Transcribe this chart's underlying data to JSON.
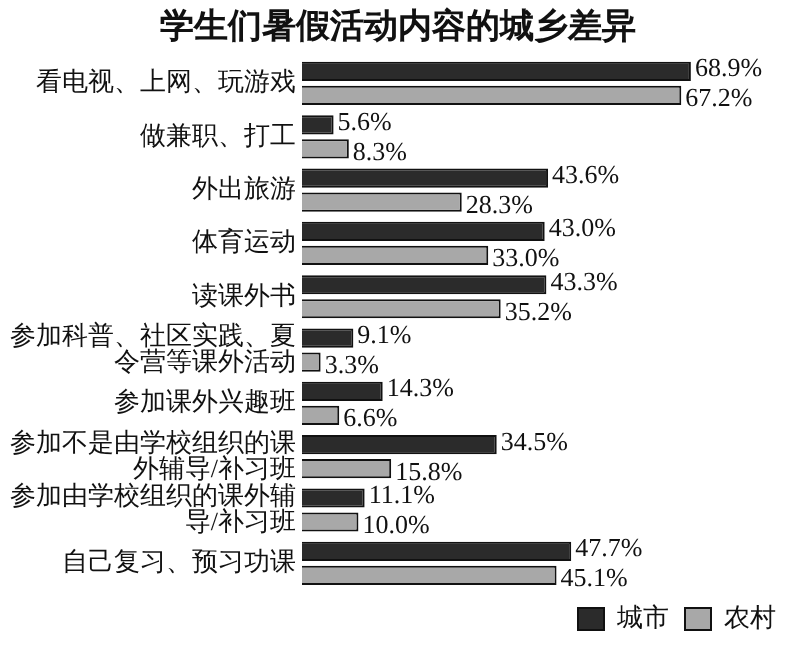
{
  "chart_data": {
    "type": "bar",
    "orientation": "horizontal",
    "title": "学生们暑假活动内容的城乡差异",
    "categories": [
      "看电视、上网、玩游戏",
      "做兼职、打工",
      "外出旅游",
      "体育运动",
      "读课外书",
      "参加科普、社区实践、夏令营等课外活动",
      "参加课外兴趣班",
      "参加不是由学校组织的课外辅导/补习班",
      "参加由学校组织的课外辅导/补习班",
      "自己复习、预习功课"
    ],
    "series": [
      {
        "name": "城市",
        "color": "#2b2b2b",
        "values": [
          68.9,
          5.6,
          43.6,
          43.0,
          43.3,
          9.1,
          14.3,
          34.5,
          11.1,
          47.7
        ],
        "value_labels": [
          "68.9%",
          "5.6%",
          "43.6%",
          "43.0%",
          "43.3%",
          "9.1%",
          "14.3%",
          "34.5%",
          "11.1%",
          "47.7%"
        ]
      },
      {
        "name": "农村",
        "color": "#a8a8a8",
        "values": [
          67.2,
          8.3,
          28.3,
          33.0,
          35.2,
          3.3,
          6.6,
          15.8,
          10.0,
          45.1
        ],
        "value_labels": [
          "67.2%",
          "8.3%",
          "28.3%",
          "33.0%",
          "35.2%",
          "3.3%",
          "6.6%",
          "15.8%",
          "10.0%",
          "45.1%"
        ]
      }
    ],
    "legend": "bottom",
    "grid": false
  }
}
